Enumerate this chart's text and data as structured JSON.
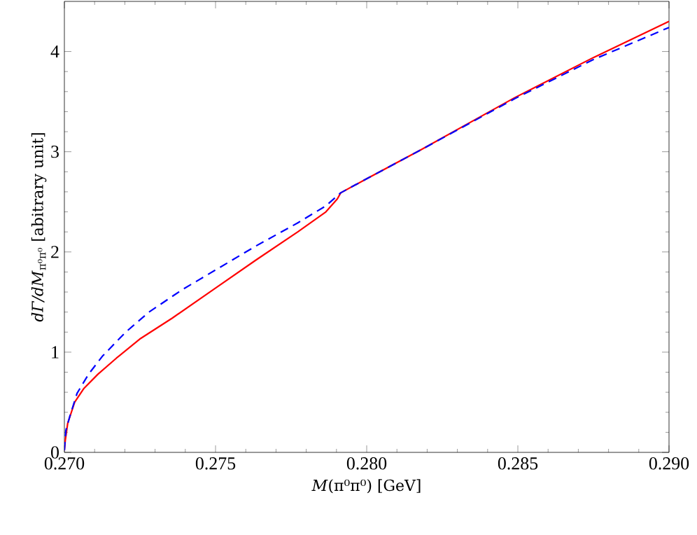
{
  "chart_data": {
    "type": "line",
    "xlabel": "*M*(π⁰π⁰) [GeV]",
    "ylabel": "*dΓ/dM*$_{π⁰π⁰}$ [abitrary unit]",
    "xlim": [
      0.27,
      0.29
    ],
    "ylim": [
      0,
      4.5
    ],
    "xticks": [
      {
        "value": 0.27,
        "label": "0.270"
      },
      {
        "value": 0.275,
        "label": "0.275"
      },
      {
        "value": 0.28,
        "label": "0.280"
      },
      {
        "value": 0.285,
        "label": "0.285"
      },
      {
        "value": 0.29,
        "label": "0.290"
      }
    ],
    "yticks": [
      0,
      1,
      2,
      3,
      4
    ],
    "marker": "none",
    "series": [
      {
        "color": "#ff0000",
        "line_style": "solid",
        "x": [
          0.27,
          0.27003,
          0.27011,
          0.27034,
          0.27065,
          0.27111,
          0.27172,
          0.27249,
          0.27357,
          0.275,
          0.27634,
          0.27772,
          0.27865,
          0.27903,
          0.27914,
          0.28,
          0.2818,
          0.2849,
          0.2875,
          0.29
        ],
        "values": [
          0.02,
          0.12,
          0.29,
          0.5,
          0.64,
          0.78,
          0.94,
          1.13,
          1.34,
          1.64,
          1.92,
          2.2,
          2.4,
          2.53,
          2.59,
          2.73,
          3.02,
          3.54,
          3.94,
          4.3
        ]
      },
      {
        "color": "#0000ff",
        "line_style": "dashed",
        "x": [
          0.27,
          0.27005,
          0.27018,
          0.27042,
          0.2708,
          0.27126,
          0.27203,
          0.2728,
          0.27388,
          0.275,
          0.27634,
          0.27772,
          0.27865,
          0.27914,
          0.28,
          0.2818,
          0.2849,
          0.2875,
          0.29
        ],
        "values": [
          0.02,
          0.22,
          0.36,
          0.59,
          0.78,
          0.96,
          1.2,
          1.4,
          1.62,
          1.82,
          2.06,
          2.29,
          2.46,
          2.59,
          2.73,
          3.02,
          3.53,
          3.92,
          4.24
        ]
      }
    ]
  }
}
